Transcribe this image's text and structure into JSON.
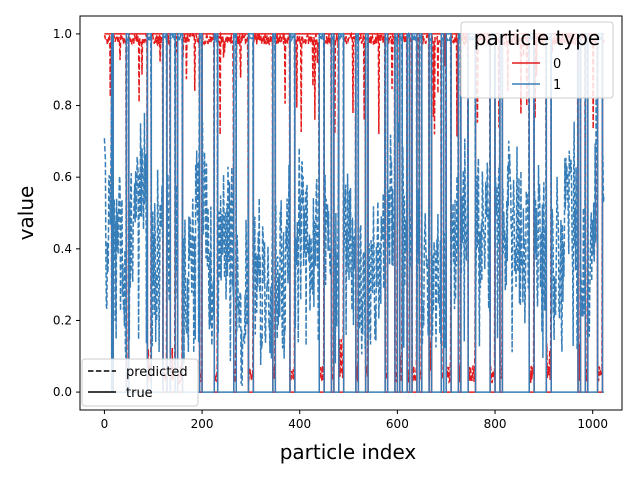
{
  "chart_data": {
    "type": "line",
    "xlabel": "particle index",
    "ylabel": "value",
    "xlim": [
      -50,
      1060
    ],
    "ylim": [
      -0.05,
      1.05
    ],
    "xticks": [
      0,
      200,
      400,
      600,
      800,
      1000
    ],
    "yticks": [
      0.0,
      0.2,
      0.4,
      0.6,
      0.8,
      1.0
    ],
    "xtick_labels": [
      "0",
      "200",
      "400",
      "600",
      "800",
      "1000"
    ],
    "ytick_labels": [
      "0.0",
      "0.2",
      "0.4",
      "0.6",
      "0.8",
      "1.0"
    ],
    "grid": false,
    "n_points": 1024,
    "type_legend": {
      "title": "particle type",
      "placement": "top-right",
      "entries": [
        {
          "label": "0",
          "color": "#e41a1c"
        },
        {
          "label": "1",
          "color": "#377eb8"
        }
      ]
    },
    "style_legend": {
      "placement": "bottom-left",
      "entries": [
        {
          "label": "predicted",
          "dash": "dashed"
        },
        {
          "label": "true",
          "dash": "solid"
        }
      ]
    },
    "type1_true_segments": [
      [
        0,
        15,
        0
      ],
      [
        15,
        18,
        1
      ],
      [
        18,
        45,
        0
      ],
      [
        45,
        50,
        1
      ],
      [
        50,
        88,
        0
      ],
      [
        88,
        96,
        1
      ],
      [
        96,
        120,
        0
      ],
      [
        120,
        128,
        1
      ],
      [
        128,
        135,
        0
      ],
      [
        135,
        145,
        1
      ],
      [
        145,
        150,
        0
      ],
      [
        150,
        160,
        1
      ],
      [
        160,
        195,
        0
      ],
      [
        195,
        200,
        1
      ],
      [
        200,
        225,
        0
      ],
      [
        225,
        232,
        1
      ],
      [
        232,
        265,
        0
      ],
      [
        265,
        270,
        1
      ],
      [
        270,
        295,
        0
      ],
      [
        295,
        305,
        1
      ],
      [
        305,
        345,
        0
      ],
      [
        345,
        350,
        1
      ],
      [
        350,
        380,
        0
      ],
      [
        380,
        390,
        1
      ],
      [
        390,
        440,
        0
      ],
      [
        440,
        450,
        1
      ],
      [
        450,
        465,
        0
      ],
      [
        465,
        470,
        1
      ],
      [
        470,
        480,
        0
      ],
      [
        480,
        490,
        1
      ],
      [
        490,
        515,
        0
      ],
      [
        515,
        520,
        1
      ],
      [
        520,
        535,
        0
      ],
      [
        535,
        540,
        1
      ],
      [
        540,
        575,
        0
      ],
      [
        575,
        580,
        1
      ],
      [
        580,
        595,
        0
      ],
      [
        595,
        600,
        1
      ],
      [
        600,
        605,
        0
      ],
      [
        605,
        610,
        1
      ],
      [
        610,
        620,
        0
      ],
      [
        620,
        625,
        1
      ],
      [
        625,
        630,
        0
      ],
      [
        630,
        640,
        1
      ],
      [
        640,
        645,
        0
      ],
      [
        645,
        650,
        1
      ],
      [
        650,
        665,
        0
      ],
      [
        665,
        670,
        1
      ],
      [
        670,
        690,
        0
      ],
      [
        690,
        695,
        1
      ],
      [
        695,
        700,
        0
      ],
      [
        700,
        710,
        1
      ],
      [
        710,
        725,
        0
      ],
      [
        725,
        730,
        1
      ],
      [
        730,
        745,
        0
      ],
      [
        745,
        760,
        1
      ],
      [
        760,
        790,
        0
      ],
      [
        790,
        800,
        1
      ],
      [
        800,
        810,
        0
      ],
      [
        810,
        815,
        1
      ],
      [
        815,
        870,
        0
      ],
      [
        870,
        880,
        1
      ],
      [
        880,
        905,
        0
      ],
      [
        905,
        915,
        1
      ],
      [
        915,
        970,
        0
      ],
      [
        970,
        975,
        1
      ],
      [
        975,
        985,
        0
      ],
      [
        985,
        990,
        1
      ],
      [
        990,
        1010,
        0
      ],
      [
        1010,
        1020,
        1
      ],
      [
        1020,
        1023,
        0
      ]
    ],
    "type1_predicted_baseline": [
      [
        0,
        0.65
      ],
      [
        5,
        0.3
      ],
      [
        10,
        0.5
      ],
      [
        15,
        0.66
      ],
      [
        20,
        0.3
      ],
      [
        30,
        0.5
      ],
      [
        40,
        0.25
      ],
      [
        55,
        0.45
      ],
      [
        70,
        0.55
      ],
      [
        85,
        0.6
      ],
      [
        100,
        0.3
      ],
      [
        110,
        0.45
      ],
      [
        140,
        0.4
      ],
      [
        170,
        0.3
      ],
      [
        200,
        0.65
      ],
      [
        215,
        0.3
      ],
      [
        240,
        0.4
      ],
      [
        260,
        0.45
      ],
      [
        280,
        0.15
      ],
      [
        300,
        0.35
      ],
      [
        320,
        0.3
      ],
      [
        340,
        0.35
      ],
      [
        360,
        0.3
      ],
      [
        380,
        0.45
      ],
      [
        400,
        0.5
      ],
      [
        420,
        0.4
      ],
      [
        440,
        0.5
      ],
      [
        460,
        0.4
      ],
      [
        480,
        0.35
      ],
      [
        500,
        0.45
      ],
      [
        520,
        0.3
      ],
      [
        540,
        0.25
      ],
      [
        560,
        0.35
      ],
      [
        580,
        0.5
      ],
      [
        600,
        0.6
      ],
      [
        620,
        0.4
      ],
      [
        640,
        0.45
      ],
      [
        660,
        0.35
      ],
      [
        680,
        0.4
      ],
      [
        700,
        0.3
      ],
      [
        720,
        0.4
      ],
      [
        740,
        0.55
      ],
      [
        760,
        0.45
      ],
      [
        780,
        0.4
      ],
      [
        800,
        0.45
      ],
      [
        820,
        0.45
      ],
      [
        840,
        0.5
      ],
      [
        860,
        0.4
      ],
      [
        880,
        0.5
      ],
      [
        900,
        0.35
      ],
      [
        920,
        0.4
      ],
      [
        940,
        0.45
      ],
      [
        960,
        0.55
      ],
      [
        980,
        0.35
      ],
      [
        1000,
        0.45
      ],
      [
        1010,
        0.65
      ],
      [
        1023,
        0.73
      ]
    ]
  }
}
